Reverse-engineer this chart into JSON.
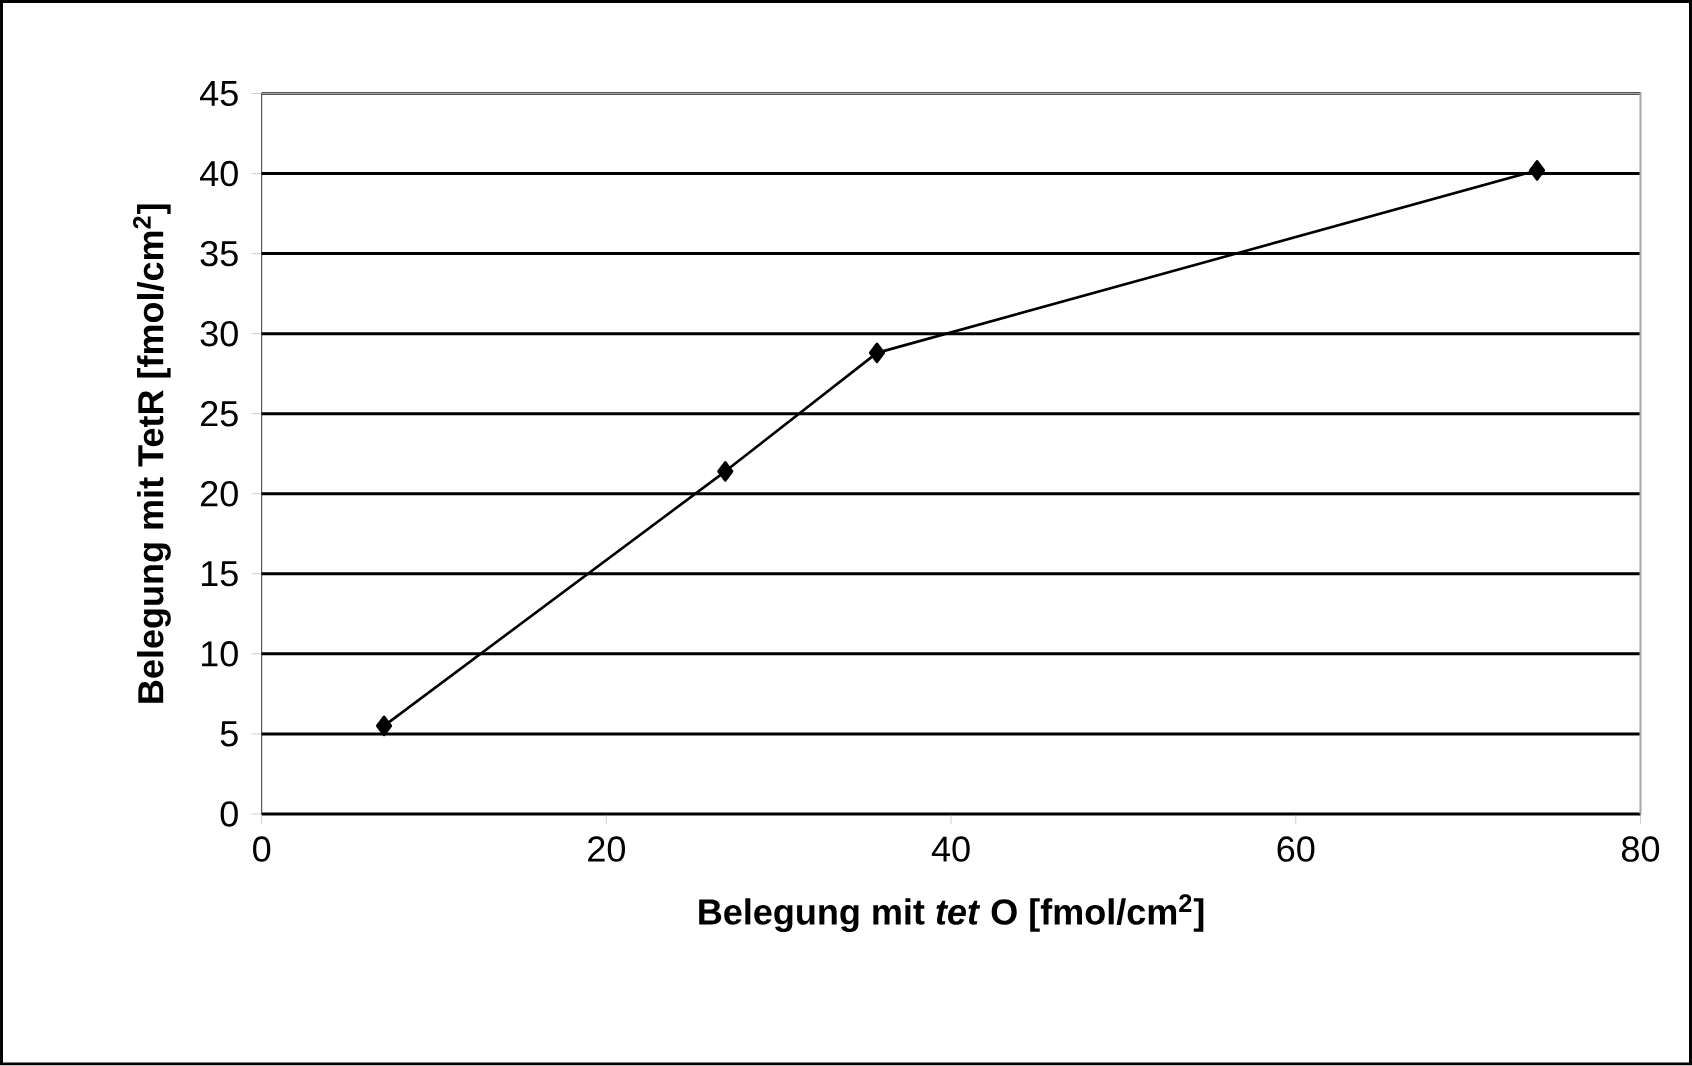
{
  "chart_data": {
    "type": "line",
    "xlabel": "Belegung mit *tet* O [fmol/cm$^{2}$]",
    "ylabel": "Belegung mit TetR [fmol/cm$^{2}$]",
    "x": [
      7.1,
      26.9,
      35.7,
      74
    ],
    "series": [
      {
        "color": "#000000",
        "values": [
          5.5,
          21.4,
          28.8,
          40.2
        ]
      }
    ],
    "xlim": [
      0,
      80
    ],
    "xticks": [
      0,
      20,
      40,
      60,
      80
    ],
    "ylim": [
      0,
      45
    ],
    "yticks": [
      0,
      5,
      10,
      15,
      20,
      25,
      30,
      35,
      40,
      45
    ],
    "grid": "y",
    "marker": "diamond",
    "line_style": "solid"
  }
}
